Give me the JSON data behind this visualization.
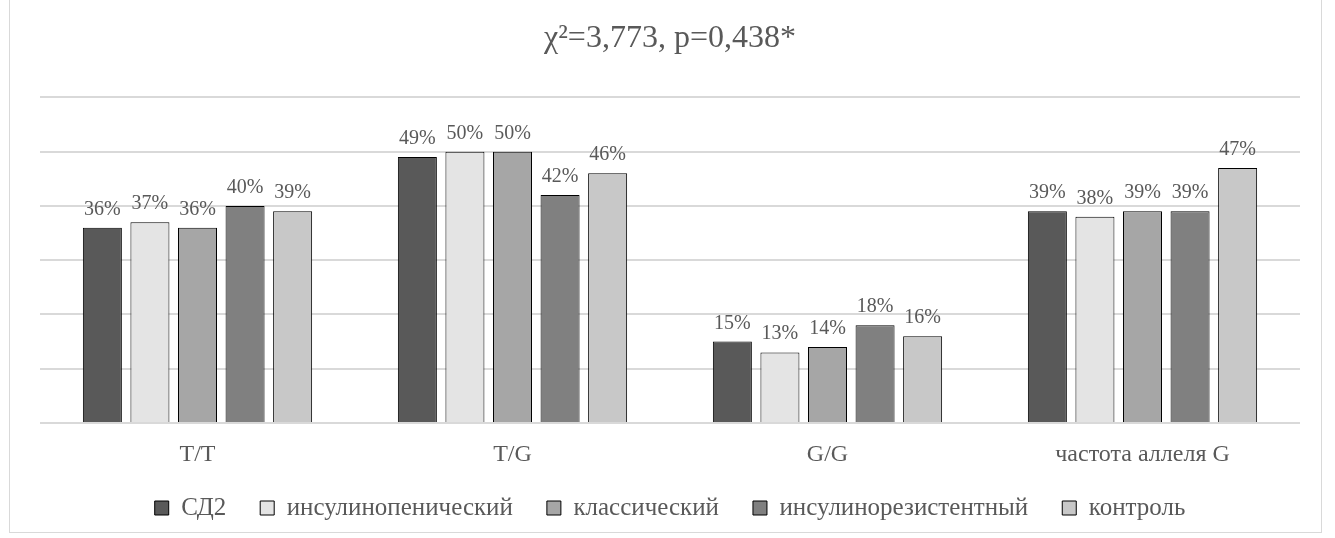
{
  "chart_data": {
    "type": "bar",
    "title": "χ²=3,773, p=0,438*",
    "categories": [
      "T/T",
      "T/G",
      "G/G",
      "частота аллеля G"
    ],
    "series": [
      {
        "name": "СД2",
        "color": "#595959",
        "values": [
          36,
          49,
          15,
          39
        ],
        "value_labels": [
          "36%",
          "49%",
          "15%",
          "39%"
        ]
      },
      {
        "name": "инсулинопенический",
        "color": "#e4e4e4",
        "values": [
          37,
          50,
          13,
          38
        ],
        "value_labels": [
          "37%",
          "50%",
          "13%",
          "38%"
        ]
      },
      {
        "name": "классический",
        "color": "#a6a6a6",
        "values": [
          36,
          50,
          14,
          39
        ],
        "value_labels": [
          "36%",
          "50%",
          "14%",
          "39%"
        ]
      },
      {
        "name": "инсулинорезистентный",
        "color": "#808080",
        "values": [
          40,
          42,
          18,
          39
        ],
        "value_labels": [
          "40%",
          "42%",
          "18%",
          "39%"
        ]
      },
      {
        "name": "контроль",
        "color": "#c8c8c8",
        "values": [
          39,
          46,
          16,
          47
        ],
        "value_labels": [
          "39%",
          "46%",
          "16%",
          "47%"
        ]
      }
    ],
    "ylim": [
      0,
      60
    ],
    "grid": "y",
    "legend": "bottom",
    "tick_labels": "x"
  }
}
